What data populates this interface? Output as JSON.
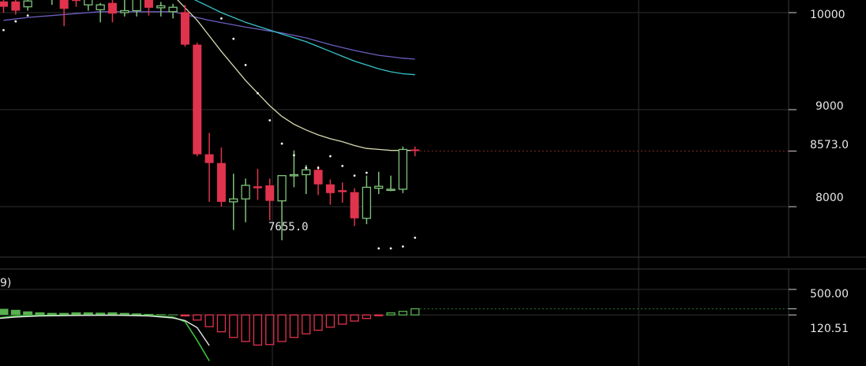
{
  "chart_data": [
    {
      "type": "candlestick",
      "name": "price-panel",
      "ylim": [
        7480,
        10130
      ],
      "y_ticks": [
        "10000",
        "9000",
        "8000"
      ],
      "last_price_label": "8573.0",
      "last_price": 8573,
      "min_label": "7655.0",
      "candles": [
        {
          "o": 10115,
          "h": 10140,
          "l": 10000,
          "c": 10060
        },
        {
          "o": 10115,
          "h": 10140,
          "l": 9980,
          "c": 10020
        },
        {
          "o": 10060,
          "h": 10150,
          "l": 10020,
          "c": 10120
        },
        {
          "o": 10150,
          "h": 10200,
          "l": 10130,
          "c": 10200
        },
        {
          "o": 10150,
          "h": 10230,
          "l": 10080,
          "c": 10200
        },
        {
          "o": 10130,
          "h": 10200,
          "l": 9860,
          "c": 10040
        },
        {
          "o": 10160,
          "h": 10200,
          "l": 10060,
          "c": 10120
        },
        {
          "o": 10080,
          "h": 10200,
          "l": 10020,
          "c": 10140
        },
        {
          "o": 10030,
          "h": 10100,
          "l": 9900,
          "c": 10080
        },
        {
          "o": 10100,
          "h": 10130,
          "l": 9900,
          "c": 9990
        },
        {
          "o": 10000,
          "h": 10150,
          "l": 9960,
          "c": 10020
        },
        {
          "o": 10020,
          "h": 10200,
          "l": 9960,
          "c": 10160
        },
        {
          "o": 10150,
          "h": 10200,
          "l": 9970,
          "c": 10050
        },
        {
          "o": 10050,
          "h": 10110,
          "l": 9960,
          "c": 10070
        },
        {
          "o": 10010,
          "h": 10090,
          "l": 9940,
          "c": 10055
        },
        {
          "o": 10005,
          "h": 10080,
          "l": 9650,
          "c": 9670
        },
        {
          "o": 9670,
          "h": 9690,
          "l": 8520,
          "c": 8540
        },
        {
          "o": 8540,
          "h": 8760,
          "l": 8050,
          "c": 8450
        },
        {
          "o": 8450,
          "h": 8610,
          "l": 8000,
          "c": 8050
        },
        {
          "o": 8050,
          "h": 8340,
          "l": 7760,
          "c": 8080
        },
        {
          "o": 8080,
          "h": 8290,
          "l": 7840,
          "c": 8220
        },
        {
          "o": 8210,
          "h": 8390,
          "l": 8070,
          "c": 8190
        },
        {
          "o": 8220,
          "h": 8290,
          "l": 7860,
          "c": 8060
        },
        {
          "o": 8060,
          "h": 8320,
          "l": 7655,
          "c": 8320
        },
        {
          "o": 8320,
          "h": 8580,
          "l": 8200,
          "c": 8330
        },
        {
          "o": 8330,
          "h": 8430,
          "l": 8130,
          "c": 8380
        },
        {
          "o": 8380,
          "h": 8420,
          "l": 8120,
          "c": 8230
        },
        {
          "o": 8230,
          "h": 8280,
          "l": 8020,
          "c": 8140
        },
        {
          "o": 8170,
          "h": 8250,
          "l": 8040,
          "c": 8150
        },
        {
          "o": 8150,
          "h": 8190,
          "l": 7800,
          "c": 7880
        },
        {
          "o": 7880,
          "h": 8320,
          "l": 7820,
          "c": 8200
        },
        {
          "o": 8190,
          "h": 8360,
          "l": 8130,
          "c": 8210
        },
        {
          "o": 8170,
          "h": 8320,
          "l": 8160,
          "c": 8180
        },
        {
          "o": 8180,
          "h": 8620,
          "l": 8140,
          "c": 8590
        },
        {
          "o": 8590,
          "h": 8620,
          "l": 8520,
          "c": 8573
        }
      ],
      "ma_fast": [
        {
          "i": 14,
          "v": 10180
        },
        {
          "i": 15,
          "v": 10050
        },
        {
          "i": 16,
          "v": 9920
        },
        {
          "i": 17,
          "v": 9760
        },
        {
          "i": 18,
          "v": 9600
        },
        {
          "i": 19,
          "v": 9450
        },
        {
          "i": 20,
          "v": 9300
        },
        {
          "i": 21,
          "v": 9170
        },
        {
          "i": 22,
          "v": 9040
        },
        {
          "i": 23,
          "v": 8930
        },
        {
          "i": 24,
          "v": 8850
        },
        {
          "i": 25,
          "v": 8790
        },
        {
          "i": 26,
          "v": 8740
        },
        {
          "i": 27,
          "v": 8700
        },
        {
          "i": 28,
          "v": 8670
        },
        {
          "i": 29,
          "v": 8630
        },
        {
          "i": 30,
          "v": 8600
        },
        {
          "i": 31,
          "v": 8590
        },
        {
          "i": 32,
          "v": 8580
        },
        {
          "i": 33,
          "v": 8580
        },
        {
          "i": 34,
          "v": 8580
        }
      ],
      "ma_mid": [
        {
          "i": 15,
          "v": 10180
        },
        {
          "i": 16,
          "v": 10120
        },
        {
          "i": 17,
          "v": 10060
        },
        {
          "i": 18,
          "v": 10000
        },
        {
          "i": 19,
          "v": 9950
        },
        {
          "i": 20,
          "v": 9900
        },
        {
          "i": 21,
          "v": 9860
        },
        {
          "i": 22,
          "v": 9820
        },
        {
          "i": 23,
          "v": 9780
        },
        {
          "i": 24,
          "v": 9740
        },
        {
          "i": 25,
          "v": 9700
        },
        {
          "i": 26,
          "v": 9650
        },
        {
          "i": 27,
          "v": 9600
        },
        {
          "i": 28,
          "v": 9550
        },
        {
          "i": 29,
          "v": 9500
        },
        {
          "i": 30,
          "v": 9460
        },
        {
          "i": 31,
          "v": 9420
        },
        {
          "i": 32,
          "v": 9390
        },
        {
          "i": 33,
          "v": 9370
        },
        {
          "i": 34,
          "v": 9360
        }
      ],
      "ma_slow": [
        {
          "i": 0,
          "v": 9920
        },
        {
          "i": 2,
          "v": 9950
        },
        {
          "i": 4,
          "v": 9970
        },
        {
          "i": 6,
          "v": 9990
        },
        {
          "i": 8,
          "v": 10010
        },
        {
          "i": 10,
          "v": 10010
        },
        {
          "i": 12,
          "v": 10010
        },
        {
          "i": 14,
          "v": 10010
        },
        {
          "i": 15,
          "v": 9980
        },
        {
          "i": 17,
          "v": 9920
        },
        {
          "i": 20,
          "v": 9850
        },
        {
          "i": 23,
          "v": 9790
        },
        {
          "i": 25,
          "v": 9740
        },
        {
          "i": 27,
          "v": 9670
        },
        {
          "i": 29,
          "v": 9610
        },
        {
          "i": 31,
          "v": 9560
        },
        {
          "i": 33,
          "v": 9530
        },
        {
          "i": 34,
          "v": 9520
        }
      ],
      "sar": [
        {
          "i": 0,
          "v": 9820
        },
        {
          "i": 1,
          "v": 9910
        },
        {
          "i": 2,
          "v": 9970
        },
        {
          "i": 18,
          "v": 9940
        },
        {
          "i": 19,
          "v": 9730
        },
        {
          "i": 20,
          "v": 9460
        },
        {
          "i": 21,
          "v": 9170
        },
        {
          "i": 22,
          "v": 8890
        },
        {
          "i": 23,
          "v": 8650
        },
        {
          "i": 24,
          "v": 8530
        },
        {
          "i": 25,
          "v": 8400
        },
        {
          "i": 26,
          "v": 8400
        },
        {
          "i": 27,
          "v": 8520
        },
        {
          "i": 28,
          "v": 8420
        },
        {
          "i": 29,
          "v": 8320
        },
        {
          "i": 30,
          "v": 8350
        },
        {
          "i": 31,
          "v": 7570
        },
        {
          "i": 32,
          "v": 7570
        },
        {
          "i": 33,
          "v": 7590
        },
        {
          "i": 34,
          "v": 7680
        }
      ]
    },
    {
      "type": "histogram",
      "name": "macd-panel",
      "header_label": "9)",
      "ylim": [
        -1000,
        900
      ],
      "y_ticks": [
        "500.00"
      ],
      "last_value_label": "120.51",
      "last_value": 120.51,
      "zero_line": 0,
      "bars": [
        120,
        100,
        70,
        50,
        40,
        40,
        50,
        50,
        45,
        50,
        40,
        30,
        20,
        15,
        10,
        -20,
        -100,
        -230,
        -330,
        -440,
        -520,
        -590,
        -580,
        -520,
        -440,
        -370,
        -300,
        -240,
        -180,
        -120,
        -70,
        -10,
        40,
        70,
        120.51
      ],
      "signal_line": [
        {
          "i": -0.5,
          "v": -60
        },
        {
          "i": 1,
          "v": -20
        },
        {
          "i": 3,
          "v": -10
        },
        {
          "i": 6,
          "v": -5
        },
        {
          "i": 9,
          "v": 0
        },
        {
          "i": 12,
          "v": -10
        },
        {
          "i": 14,
          "v": -40
        },
        {
          "i": 15,
          "v": -130
        },
        {
          "i": 16,
          "v": -500
        },
        {
          "i": 17,
          "v": -900
        }
      ],
      "macd_line": [
        {
          "i": -0.5,
          "v": -70
        },
        {
          "i": 1,
          "v": -40
        },
        {
          "i": 3,
          "v": -20
        },
        {
          "i": 6,
          "v": -10
        },
        {
          "i": 9,
          "v": -5
        },
        {
          "i": 12,
          "v": -20
        },
        {
          "i": 14,
          "v": -60
        },
        {
          "i": 15,
          "v": -110
        },
        {
          "i": 16,
          "v": -250
        },
        {
          "i": 17,
          "v": -600
        }
      ]
    }
  ],
  "colors": {
    "background": "#000000",
    "up_candle": "#7fc27a",
    "down_candle": "#e0334e",
    "ma_fast": "#d8d8b0",
    "ma_mid": "#37c3c8",
    "ma_slow": "#6a5fbf",
    "grid": "#2e2e2e",
    "price_line": "#8a2a2a",
    "macd_up": "#58b04f",
    "macd_down": "#e0334e",
    "macd_line": "#e6e6e6",
    "signal_line": "#3bc23b"
  }
}
